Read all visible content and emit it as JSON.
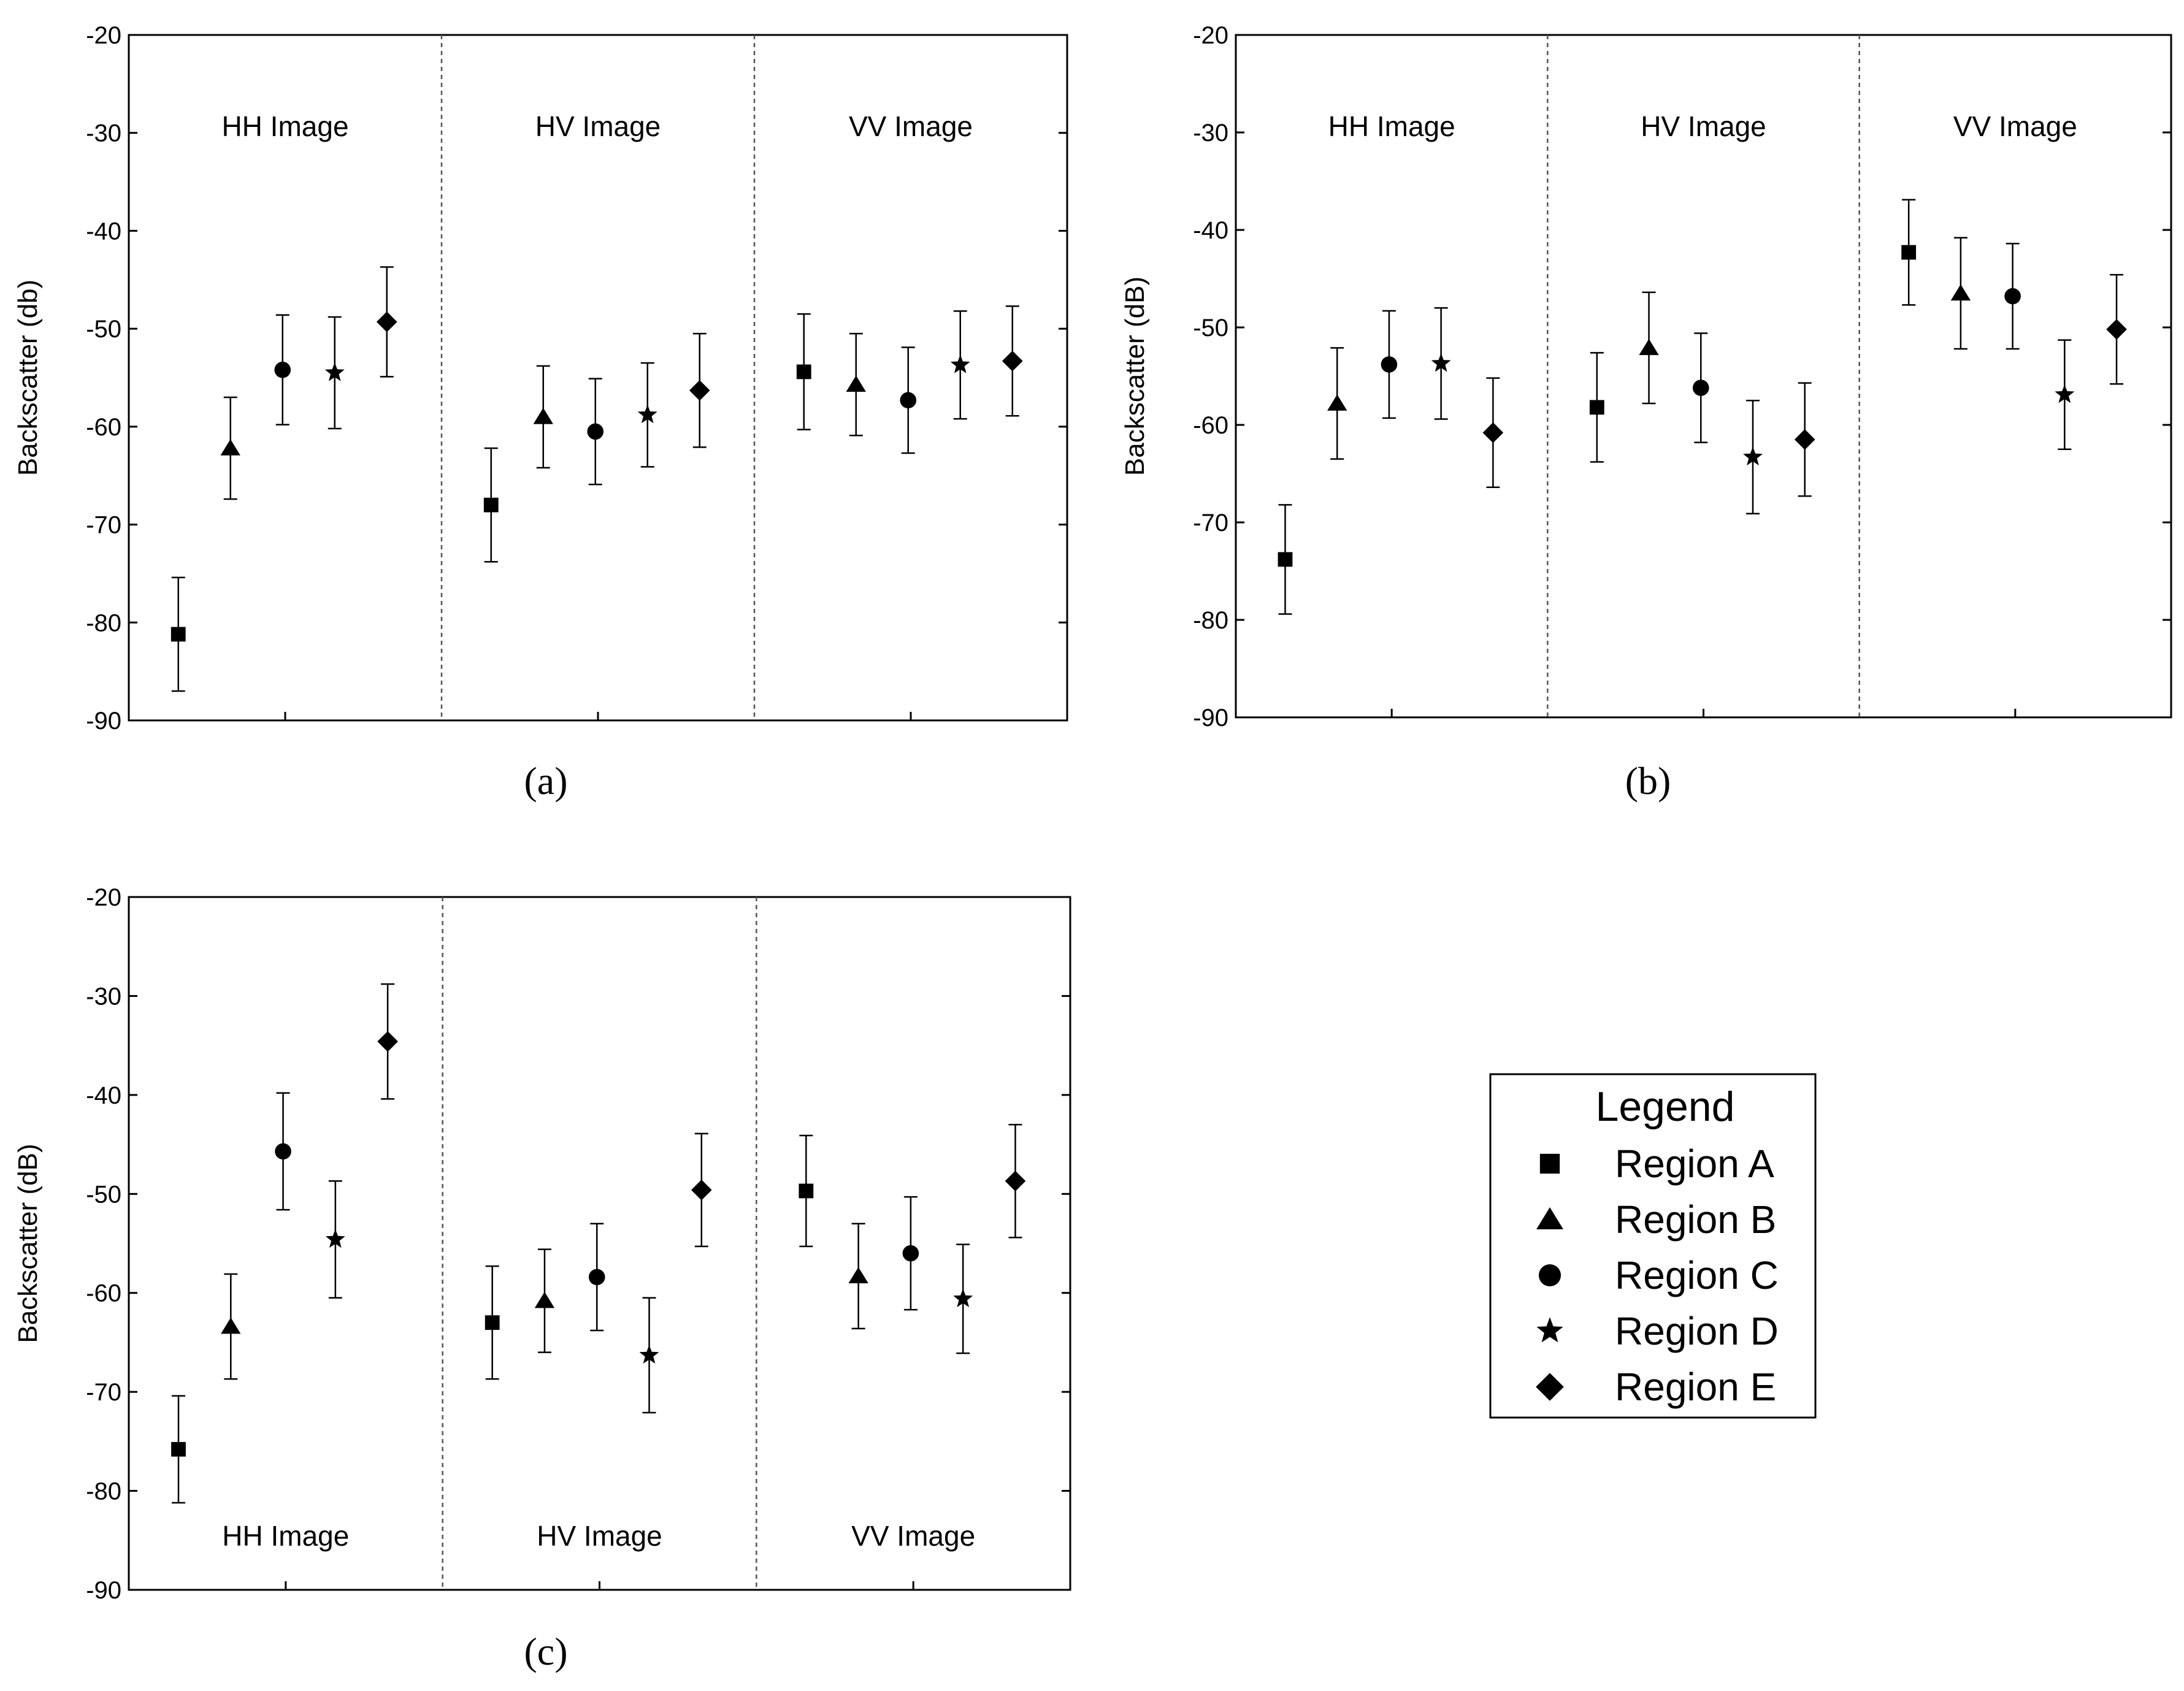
{
  "chart_data": [
    {
      "type": "scatter",
      "id": "a",
      "caption": "(a)",
      "ylabel": "Backscatter (db)",
      "xlabel": "",
      "ylim": [
        -90,
        -20
      ],
      "yticks": [
        -20,
        -30,
        -40,
        -50,
        -60,
        -70,
        -80,
        -90
      ],
      "group_label_position": "top",
      "groups": [
        {
          "label": "HH Image",
          "points": [
            {
              "region": "Region A",
              "marker": "square",
              "y": -81.2,
              "err": 5.8
            },
            {
              "region": "Region B",
              "marker": "triangle",
              "y": -62.2,
              "err": 5.2
            },
            {
              "region": "Region C",
              "marker": "circle",
              "y": -54.2,
              "err": 5.6
            },
            {
              "region": "Region D",
              "marker": "star",
              "y": -54.5,
              "err": 5.7
            },
            {
              "region": "Region E",
              "marker": "diamond",
              "y": -49.3,
              "err": 5.6
            }
          ]
        },
        {
          "label": "HV Image",
          "points": [
            {
              "region": "Region A",
              "marker": "square",
              "y": -68.0,
              "err": 5.8
            },
            {
              "region": "Region B",
              "marker": "triangle",
              "y": -59.0,
              "err": 5.2
            },
            {
              "region": "Region C",
              "marker": "circle",
              "y": -60.5,
              "err": 5.4
            },
            {
              "region": "Region D",
              "marker": "star",
              "y": -58.8,
              "err": 5.3
            },
            {
              "region": "Region E",
              "marker": "diamond",
              "y": -56.3,
              "err": 5.8
            }
          ]
        },
        {
          "label": "VV Image",
          "points": [
            {
              "region": "Region A",
              "marker": "square",
              "y": -54.4,
              "err": 5.9
            },
            {
              "region": "Region B",
              "marker": "triangle",
              "y": -55.7,
              "err": 5.2
            },
            {
              "region": "Region C",
              "marker": "circle",
              "y": -57.3,
              "err": 5.4
            },
            {
              "region": "Region D",
              "marker": "star",
              "y": -53.7,
              "err": 5.5
            },
            {
              "region": "Region E",
              "marker": "diamond",
              "y": -53.3,
              "err": 5.6
            }
          ]
        }
      ]
    },
    {
      "type": "scatter",
      "id": "b",
      "caption": "(b)",
      "ylabel": "Backscatter (dB)",
      "xlabel": "",
      "ylim": [
        -90,
        -20
      ],
      "yticks": [
        -20,
        -30,
        -40,
        -50,
        -60,
        -70,
        -80,
        -90
      ],
      "group_label_position": "top",
      "groups": [
        {
          "label": "HH Image",
          "points": [
            {
              "region": "Region A",
              "marker": "square",
              "y": -73.8,
              "err": 5.6
            },
            {
              "region": "Region B",
              "marker": "triangle",
              "y": -57.8,
              "err": 5.7
            },
            {
              "region": "Region C",
              "marker": "circle",
              "y": -53.8,
              "err": 5.5
            },
            {
              "region": "Region D",
              "marker": "star",
              "y": -53.7,
              "err": 5.7
            },
            {
              "region": "Region E",
              "marker": "diamond",
              "y": -60.8,
              "err": 5.6
            }
          ]
        },
        {
          "label": "HV Image",
          "points": [
            {
              "region": "Region A",
              "marker": "square",
              "y": -58.2,
              "err": 5.6
            },
            {
              "region": "Region B",
              "marker": "triangle",
              "y": -52.1,
              "err": 5.7
            },
            {
              "region": "Region C",
              "marker": "circle",
              "y": -56.2,
              "err": 5.6
            },
            {
              "region": "Region D",
              "marker": "star",
              "y": -63.3,
              "err": 5.8
            },
            {
              "region": "Region E",
              "marker": "diamond",
              "y": -61.5,
              "err": 5.8
            }
          ]
        },
        {
          "label": "VV Image",
          "points": [
            {
              "region": "Region A",
              "marker": "square",
              "y": -42.3,
              "err": 5.4
            },
            {
              "region": "Region B",
              "marker": "triangle",
              "y": -46.5,
              "err": 5.7
            },
            {
              "region": "Region C",
              "marker": "circle",
              "y": -46.8,
              "err": 5.4
            },
            {
              "region": "Region D",
              "marker": "star",
              "y": -56.9,
              "err": 5.6
            },
            {
              "region": "Region E",
              "marker": "diamond",
              "y": -50.2,
              "err": 5.6
            }
          ]
        }
      ]
    },
    {
      "type": "scatter",
      "id": "c",
      "caption": "(c)",
      "ylabel": "Backscatter (dB)",
      "xlabel": "",
      "ylim": [
        -90,
        -20
      ],
      "yticks": [
        -20,
        -30,
        -40,
        -50,
        -60,
        -70,
        -80,
        -90
      ],
      "group_label_position": "bottom",
      "groups": [
        {
          "label": "HH Image",
          "points": [
            {
              "region": "Region A",
              "marker": "square",
              "y": -75.8,
              "err": 5.4
            },
            {
              "region": "Region B",
              "marker": "triangle",
              "y": -63.4,
              "err": 5.3
            },
            {
              "region": "Region C",
              "marker": "circle",
              "y": -45.7,
              "err": 5.9
            },
            {
              "region": "Region D",
              "marker": "star",
              "y": -54.6,
              "err": 5.9
            },
            {
              "region": "Region E",
              "marker": "diamond",
              "y": -34.6,
              "err": 5.8
            }
          ]
        },
        {
          "label": "HV Image",
          "points": [
            {
              "region": "Region A",
              "marker": "square",
              "y": -63.0,
              "err": 5.7
            },
            {
              "region": "Region B",
              "marker": "triangle",
              "y": -60.8,
              "err": 5.2
            },
            {
              "region": "Region C",
              "marker": "circle",
              "y": -58.4,
              "err": 5.4
            },
            {
              "region": "Region D",
              "marker": "star",
              "y": -66.3,
              "err": 5.8
            },
            {
              "region": "Region E",
              "marker": "diamond",
              "y": -49.6,
              "err": 5.7
            }
          ]
        },
        {
          "label": "VV Image",
          "points": [
            {
              "region": "Region A",
              "marker": "square",
              "y": -49.7,
              "err": 5.6
            },
            {
              "region": "Region B",
              "marker": "triangle",
              "y": -58.3,
              "err": 5.3
            },
            {
              "region": "Region C",
              "marker": "circle",
              "y": -56.0,
              "err": 5.7
            },
            {
              "region": "Region D",
              "marker": "star",
              "y": -60.6,
              "err": 5.5
            },
            {
              "region": "Region E",
              "marker": "diamond",
              "y": -48.7,
              "err": 5.7
            }
          ]
        }
      ]
    }
  ],
  "legend": {
    "title": "Legend",
    "placement": "bottom-right",
    "items": [
      {
        "label": "Region A",
        "marker": "square"
      },
      {
        "label": "Region B",
        "marker": "triangle"
      },
      {
        "label": "Region C",
        "marker": "circle"
      },
      {
        "label": "Region D",
        "marker": "star"
      },
      {
        "label": "Region E",
        "marker": "diamond"
      }
    ]
  },
  "colors": {
    "ink": "#000000",
    "background": "#ffffff",
    "divider": "#555555"
  }
}
